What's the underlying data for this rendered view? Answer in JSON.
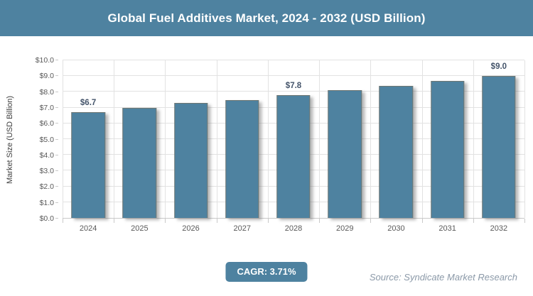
{
  "header": {
    "title": "Global Fuel Additives Market, 2024 - 2032 (USD Billion)"
  },
  "chart_data": {
    "type": "bar",
    "title": "Global Fuel Additives Market, 2024 - 2032 (USD Billion)",
    "categories": [
      "2024",
      "2025",
      "2026",
      "2027",
      "2028",
      "2029",
      "2030",
      "2031",
      "2032"
    ],
    "values": [
      6.7,
      7.0,
      7.3,
      7.5,
      7.8,
      8.1,
      8.4,
      8.7,
      9.0
    ],
    "bar_labels": [
      "$6.7",
      "",
      "",
      "",
      "$7.8",
      "",
      "",
      "",
      "$9.0"
    ],
    "xlabel": "",
    "ylabel": "Market Size (USD Billion)",
    "ylim": [
      0,
      10
    ],
    "ytick_step": 1,
    "ytick_labels": [
      "$0.0",
      "$1.0",
      "$2.0",
      "$3.0",
      "$4.0",
      "$5.0",
      "$6.0",
      "$7.0",
      "$8.0",
      "$9.0",
      "$10.0"
    ],
    "grid": true,
    "legend": false
  },
  "footer": {
    "cagr_label": "CAGR: 3.71%",
    "source": "Source: Syndicate Market Research"
  },
  "colors": {
    "accent_teal": "#4e82a0",
    "bar_fill": "#4e82a0",
    "gridline": "#e2e2e2",
    "tick_text": "#595959",
    "bar_label_text": "#44546a",
    "source_text": "#8b99a8"
  }
}
